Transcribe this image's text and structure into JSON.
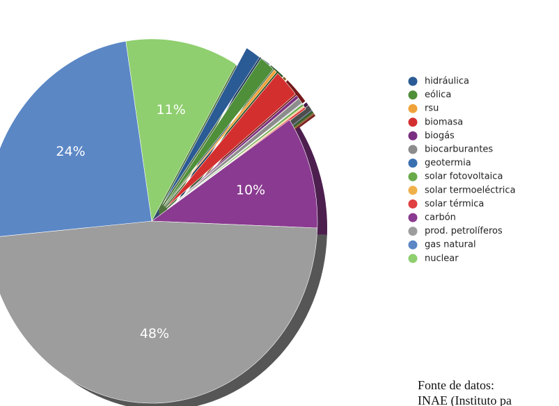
{
  "chart_data": {
    "type": "pie",
    "categories": [
      "hidráulica",
      "eólica",
      "rsu",
      "biomasa",
      "biogás",
      "biocarburantes",
      "geotermia",
      "solar fotovoltaica",
      "solar termoeléctrica",
      "solar térmica",
      "carbón",
      "prod. petrolíferos",
      "gas natural",
      "nuclear"
    ],
    "values": [
      1.5,
      1.5,
      0.3,
      2.5,
      0.3,
      0.5,
      0.05,
      0.2,
      0.1,
      0.2,
      10,
      48,
      24,
      11
    ],
    "value_labels": [
      null,
      null,
      null,
      null,
      null,
      null,
      null,
      null,
      null,
      null,
      "10%",
      "48%",
      "24%",
      "11%"
    ],
    "colors": [
      "#2b5b94",
      "#4f8f3a",
      "#f0a23a",
      "#d42f2f",
      "#7a2f80",
      "#8c8c8c",
      "#3a6fb0",
      "#6aaa4a",
      "#f0b04a",
      "#e04040",
      "#8a3a90",
      "#9d9d9d",
      "#5b87c5",
      "#8fcf6f"
    ],
    "legend": "right"
  },
  "footnote": [
    "Fonte de datos:",
    "INAE (Instituto pa"
  ]
}
